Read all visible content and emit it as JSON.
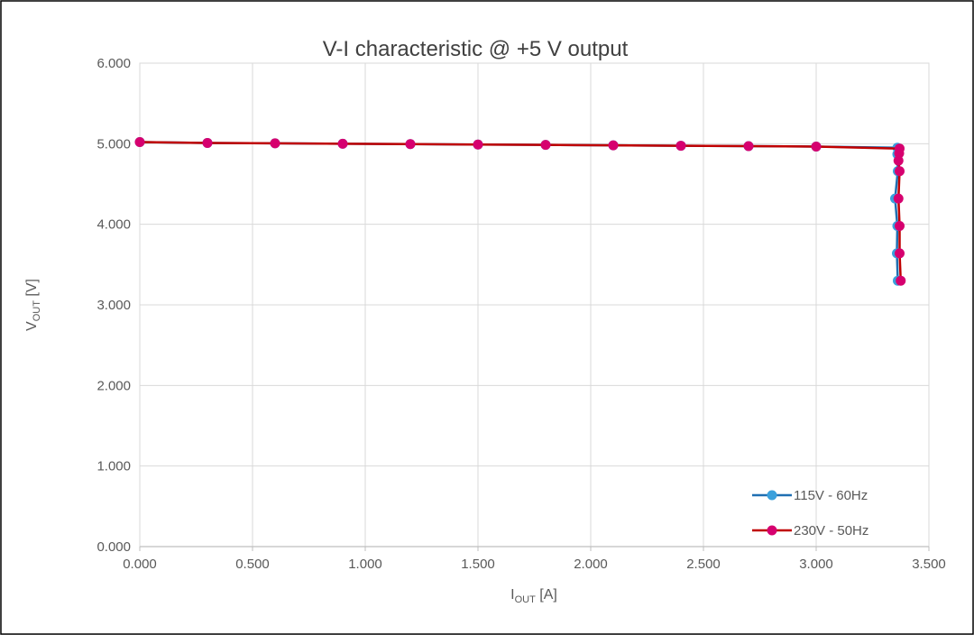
{
  "chart_data": {
    "type": "line",
    "title": "V-I characteristic @ +5 V output",
    "xlabel": {
      "main": "I",
      "sub": "OUT",
      "unit": " [A]"
    },
    "ylabel": {
      "main": "V",
      "sub": "OUT",
      "unit": " [V]"
    },
    "xlim": [
      0,
      3.5
    ],
    "ylim": [
      0,
      6
    ],
    "x_ticks": [
      "0.000",
      "0.500",
      "1.000",
      "1.500",
      "2.000",
      "2.500",
      "3.000",
      "3.500"
    ],
    "y_ticks": [
      "0.000",
      "1.000",
      "2.000",
      "3.000",
      "4.000",
      "5.000",
      "6.000"
    ],
    "grid": true,
    "legend_position": "bottom-right",
    "series": [
      {
        "name": "115V - 60Hz",
        "line_color": "#1f6fb2",
        "marker_color": "#3aa0dc",
        "x": [
          0,
          0.3,
          0.6,
          0.9,
          1.2,
          1.5,
          1.8,
          2.1,
          2.4,
          2.7,
          3.0,
          3.36,
          3.36,
          3.362,
          3.35,
          3.36,
          3.358,
          3.362
        ],
        "y": [
          5.02,
          5.01,
          5.005,
          5.0,
          4.995,
          4.99,
          4.985,
          4.98,
          4.975,
          4.97,
          4.965,
          4.95,
          4.87,
          4.66,
          4.32,
          3.98,
          3.64,
          3.3
        ]
      },
      {
        "name": "230V - 50Hz",
        "line_color": "#c00000",
        "marker_color": "#d6006f",
        "x": [
          0,
          0.3,
          0.6,
          0.9,
          1.2,
          1.5,
          1.8,
          2.1,
          2.4,
          2.7,
          3.0,
          3.37,
          3.368,
          3.365,
          3.37,
          3.365,
          3.37,
          3.37,
          3.375
        ],
        "y": [
          5.02,
          5.01,
          5.005,
          5.0,
          4.995,
          4.99,
          4.985,
          4.98,
          4.975,
          4.97,
          4.965,
          4.94,
          4.88,
          4.79,
          4.66,
          4.32,
          3.98,
          3.64,
          3.3
        ]
      }
    ]
  }
}
